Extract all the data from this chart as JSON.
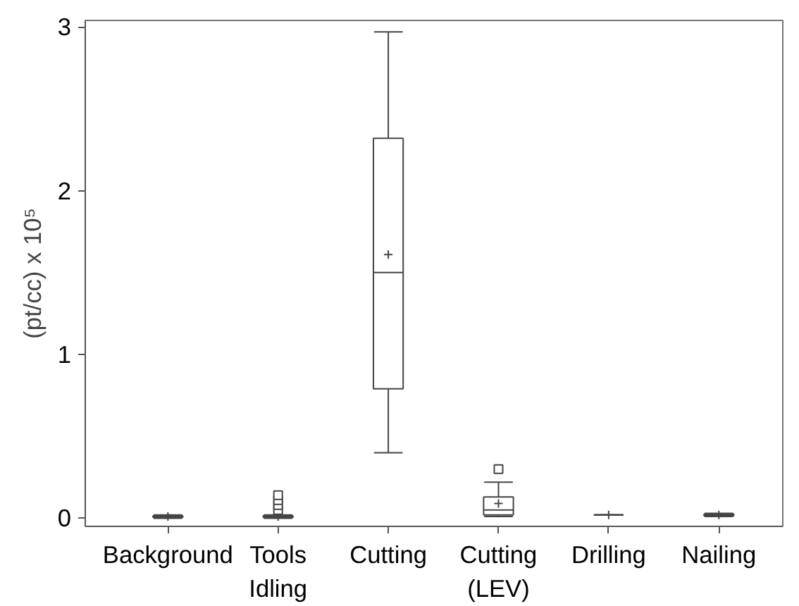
{
  "chart_data": {
    "type": "box",
    "ylabel": "(pt/cc) x 10⁵",
    "categories": [
      "Background",
      "Tools\nIdling",
      "Cutting",
      "Cutting\n(LEV)",
      "Drilling",
      "Nailing"
    ],
    "boxes": [
      {
        "low": 0.0,
        "q1": 0.005,
        "median": 0.01,
        "q3": 0.015,
        "high": 0.02,
        "mean": 0.01
      },
      {
        "low": 0.0,
        "q1": 0.005,
        "median": 0.01,
        "q3": 0.015,
        "high": 0.02,
        "mean": 0.01,
        "outliers": [
          0.05,
          0.08,
          0.11,
          0.14
        ]
      },
      {
        "low": 0.4,
        "q1": 0.79,
        "median": 1.5,
        "q3": 2.32,
        "high": 2.97,
        "mean": 1.61
      },
      {
        "low": 0.01,
        "q1": 0.02,
        "median": 0.05,
        "q3": 0.13,
        "high": 0.22,
        "mean": 0.09,
        "outliers": [
          0.3
        ]
      },
      {
        "low": 0.02,
        "q1": 0.02,
        "median": 0.02,
        "q3": 0.02,
        "high": 0.02,
        "mean": 0.02
      },
      {
        "low": 0.01,
        "q1": 0.015,
        "median": 0.02,
        "q3": 0.025,
        "high": 0.03,
        "mean": 0.02
      }
    ],
    "ylim": [
      -0.05,
      3.04
    ],
    "yticks": [
      0,
      1,
      2,
      3
    ],
    "grid": false,
    "marker": "square"
  }
}
